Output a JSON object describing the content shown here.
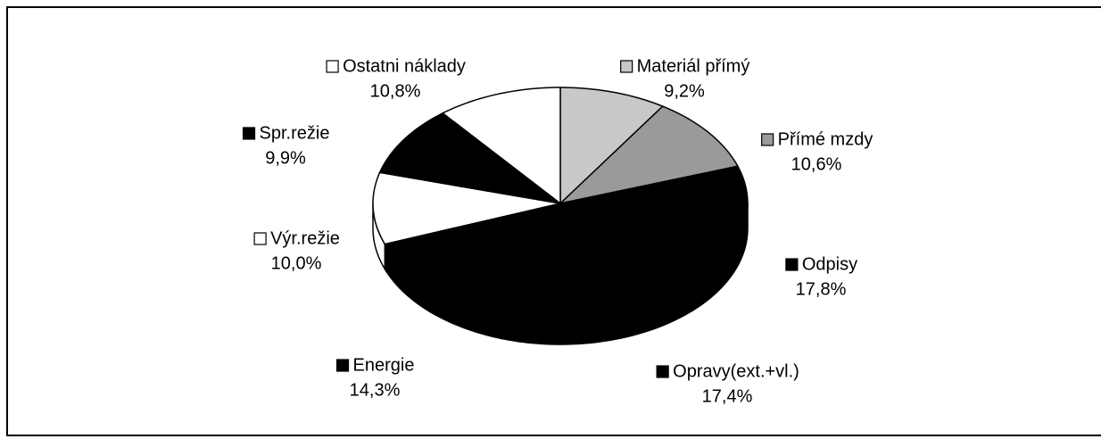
{
  "chart_data": {
    "type": "pie",
    "categories": [
      "Materiál přímý",
      "Přímé mzdy",
      "Odpisy",
      "Opravy(ext.+vl.)",
      "Energie",
      "Výr.režie",
      "Spr.režie",
      "Ostatni náklady"
    ],
    "values": [
      9.2,
      10.6,
      17.8,
      17.4,
      14.3,
      10.0,
      9.9,
      10.8
    ],
    "value_labels": [
      "9,2%",
      "10,6%",
      "17,8%",
      "17,4%",
      "14,3%",
      "10,0%",
      "9,9%",
      "10,8%"
    ],
    "colors": [
      "#c8c8c8",
      "#9a9a9a",
      "#000000",
      "#000000",
      "#000000",
      "#ffffff",
      "#000000",
      "#ffffff"
    ]
  }
}
